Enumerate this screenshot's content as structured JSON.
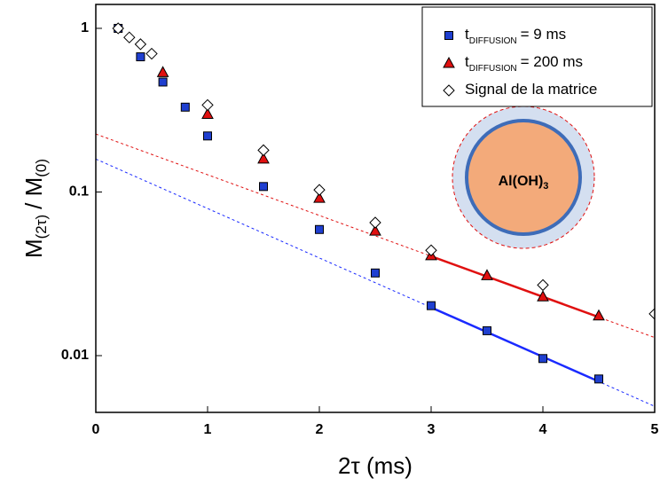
{
  "chart_data": {
    "type": "scatter",
    "x_label": "2τ (ms)",
    "y_label": {
      "main": "M",
      "sub": "(2τ)",
      "mid": "/ M",
      "sub2": "(0)"
    },
    "annotation": {
      "main": "Al(OH)",
      "sub": "3"
    },
    "xlim": [
      0,
      5
    ],
    "xticks": [
      0,
      1,
      2,
      3,
      4,
      5
    ],
    "ylim": [
      0.0045,
      1.4
    ],
    "yticks": [
      0.01,
      0.1,
      1
    ],
    "log_y": true,
    "legend": "top-right",
    "series": [
      {
        "name": "t",
        "name_sub": "DIFFUSION",
        "name_rest": "= 9 ms",
        "color": "#1f3fd0",
        "marker": "square",
        "x": [
          0.2,
          0.4,
          0.6,
          0.8,
          1.0,
          1.5,
          2.0,
          2.5,
          3.0,
          3.5,
          4.0,
          4.5
        ],
        "values": [
          1.0,
          0.67,
          0.47,
          0.33,
          0.22,
          0.108,
          0.059,
          0.032,
          0.0202,
          0.0142,
          0.0096,
          0.0072
        ]
      },
      {
        "name": "t",
        "name_sub": "DIFFUSION",
        "name_rest": "= 200 ms",
        "color": "#e01010",
        "marker": "triangle",
        "x": [
          0.6,
          1.0,
          1.5,
          2.0,
          2.5,
          3.0,
          3.5,
          4.0,
          4.5
        ],
        "values": [
          0.54,
          0.3,
          0.16,
          0.092,
          0.058,
          0.041,
          0.031,
          0.023,
          0.0176
        ]
      },
      {
        "name": "Signal de la matrice",
        "color": "#ffffff",
        "marker": "diamond",
        "x": [
          0.2,
          0.3,
          0.4,
          0.5,
          1.0,
          1.5,
          2.0,
          2.5,
          3.0,
          4.0,
          5.0
        ],
        "values": [
          1.0,
          0.88,
          0.8,
          0.7,
          0.34,
          0.18,
          0.103,
          0.065,
          0.044,
          0.027,
          0.018
        ]
      }
    ],
    "fits": [
      {
        "color": "#1a2aff",
        "dash": true,
        "x": [
          0,
          5
        ],
        "values": [
          0.159,
          0.0049
        ]
      },
      {
        "color": "#e01010",
        "dash": true,
        "x": [
          0,
          5
        ],
        "values": [
          0.226,
          0.0129
        ]
      },
      {
        "color": "#1a2aff",
        "dash": false,
        "x": [
          3,
          4.5
        ],
        "values": [
          0.0197,
          0.00695
        ]
      },
      {
        "color": "#e01010",
        "dash": false,
        "x": [
          3,
          4.5
        ],
        "values": [
          0.0405,
          0.0172
        ]
      }
    ]
  }
}
